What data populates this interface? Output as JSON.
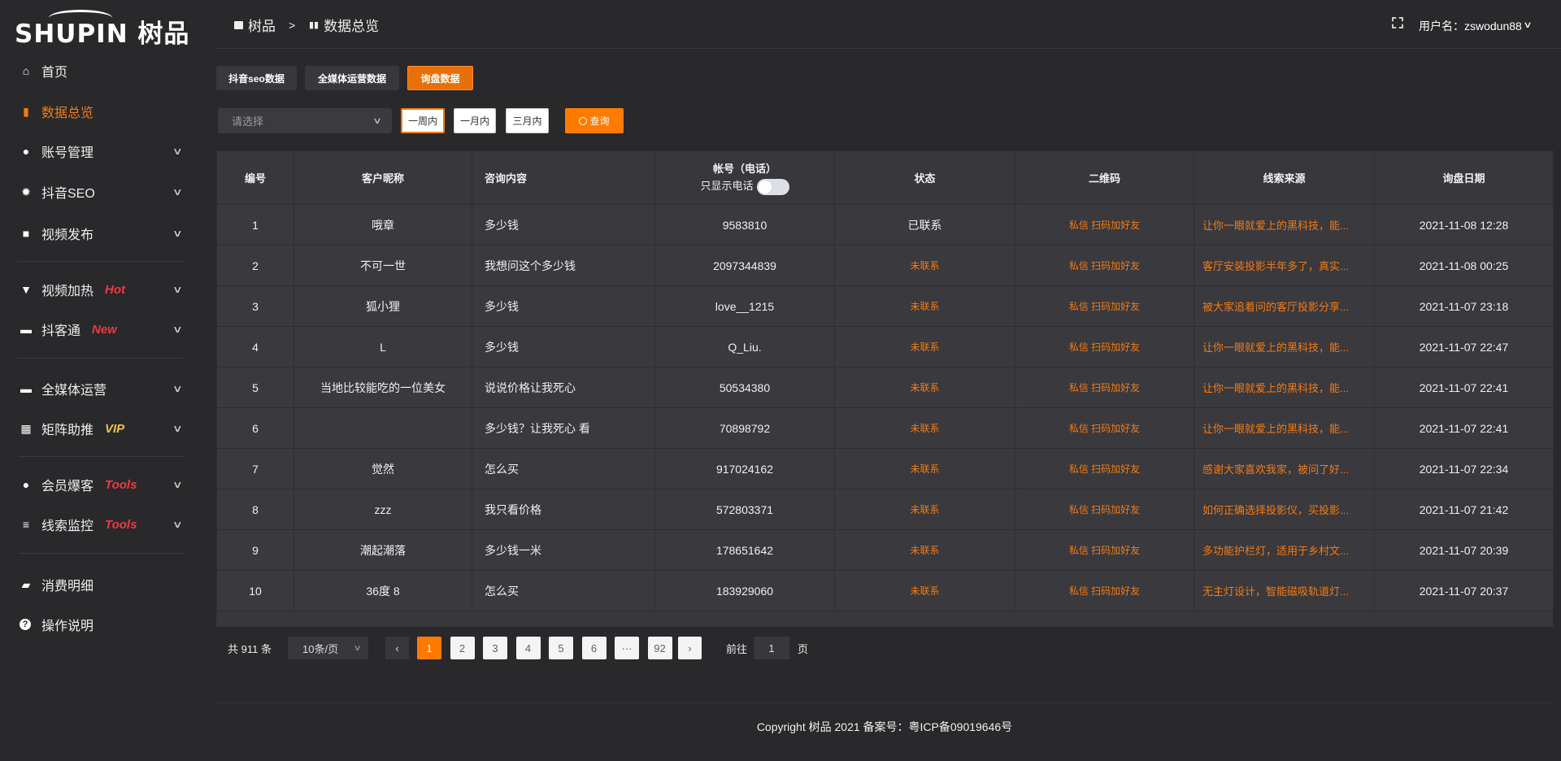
{
  "logo": {
    "text": "SHUPIN 树品"
  },
  "header": {
    "breadcrumb": [
      {
        "label": "树品",
        "icon": "chart-line-icon"
      },
      {
        "label": "数据总览",
        "icon": "bar-chart-icon"
      }
    ],
    "separator": ">",
    "username_label": "用户名：zswodun88"
  },
  "sidebar": {
    "items": [
      {
        "label": "首页",
        "icon": "home-icon",
        "badge": "",
        "chevron": false
      },
      {
        "label": "数据总览",
        "icon": "bar-chart-icon",
        "badge": "",
        "chevron": false,
        "active": true
      },
      {
        "label": "账号管理",
        "icon": "user-icon",
        "badge": "",
        "chevron": true
      },
      {
        "label": "抖音SEO",
        "icon": "gear-icon",
        "badge": "",
        "chevron": true
      },
      {
        "label": "视频发布",
        "icon": "video-icon",
        "badge": "",
        "chevron": true
      },
      {
        "label": "视频加热",
        "icon": "brush-icon",
        "badge": "Hot",
        "chevron": true
      },
      {
        "label": "抖客通",
        "icon": "chat-icon",
        "badge": "New",
        "chevron": true
      },
      {
        "label": "全媒体运营",
        "icon": "monitor-icon",
        "badge": "",
        "chevron": true
      },
      {
        "label": "矩阵助推",
        "icon": "grid-icon",
        "badge": "VIP",
        "chevron": true
      },
      {
        "label": "会员爆客",
        "icon": "member-icon",
        "badge": "Tools",
        "chevron": true
      },
      {
        "label": "线索监控",
        "icon": "sliders-icon",
        "badge": "Tools",
        "chevron": true
      },
      {
        "label": "消费明细",
        "icon": "wallet-icon",
        "badge": "",
        "chevron": false
      },
      {
        "label": "操作说明",
        "icon": "help-icon",
        "badge": "",
        "chevron": false
      }
    ],
    "badge_colors": {
      "Hot": "#f0383f",
      "New": "#f0383f",
      "VIP": "#f5c242",
      "Tools": "#f0383f"
    }
  },
  "tabs": [
    {
      "label": "抖音seo数据"
    },
    {
      "label": "全媒体运营数据"
    },
    {
      "label": "询盘数据",
      "active": true
    }
  ],
  "filters": {
    "select_placeholder": "请选择",
    "ranges": [
      "一周内",
      "一月内",
      "三月内"
    ],
    "active_range": "一周内",
    "query_label": "查询"
  },
  "table": {
    "headers": [
      "编号",
      "客户昵称",
      "咨询内容",
      "帐号（电话）",
      "状态",
      "二维码",
      "线索来源",
      "询盘日期"
    ],
    "phone_toggle_label": "只显示电话",
    "phone_toggle_on": false,
    "rows": [
      {
        "id": "1",
        "nickname": "哦章",
        "content": "多少钱",
        "account": "9583810",
        "status": "已联系",
        "qr": "私信 扫码加好友",
        "source": "让你一眼就爱上的黑科技，能...",
        "date": "2021-11-08 12:28"
      },
      {
        "id": "2",
        "nickname": "不可一世",
        "content": "我想问这个多少钱",
        "account": "2097344839",
        "status": "未联系",
        "qr": "私信 扫码加好友",
        "source": "客厅安装投影半年多了，真实...",
        "date": "2021-11-08 00:25"
      },
      {
        "id": "3",
        "nickname": "狐小狸",
        "content": "多少钱",
        "account": "love__1215",
        "status": "未联系",
        "qr": "私信 扫码加好友",
        "source": "被大家追着问的客厅投影分享...",
        "date": "2021-11-07 23:18"
      },
      {
        "id": "4",
        "nickname": "L",
        "content": "多少钱",
        "account": "Q_Liu.",
        "status": "未联系",
        "qr": "私信 扫码加好友",
        "source": "让你一眼就爱上的黑科技，能...",
        "date": "2021-11-07 22:47"
      },
      {
        "id": "5",
        "nickname": "当地比较能吃的一位美女",
        "content": "说说价格让我死心",
        "account": "50534380",
        "status": "未联系",
        "qr": "私信 扫码加好友",
        "source": "让你一眼就爱上的黑科技，能...",
        "date": "2021-11-07 22:41"
      },
      {
        "id": "6",
        "nickname": "",
        "content": "多少钱？让我死心 看",
        "account": "70898792",
        "status": "未联系",
        "qr": "私信 扫码加好友",
        "source": "让你一眼就爱上的黑科技，能...",
        "date": "2021-11-07 22:41"
      },
      {
        "id": "7",
        "nickname": "觉然",
        "content": "怎么买",
        "account": "917024162",
        "status": "未联系",
        "qr": "私信 扫码加好友",
        "source": "感谢大家喜欢我家，被问了好...",
        "date": "2021-11-07 22:34"
      },
      {
        "id": "8",
        "nickname": "zzz",
        "content": "我只看价格",
        "account": "572803371",
        "status": "未联系",
        "qr": "私信 扫码加好友",
        "source": "如何正确选择投影仪，买投影...",
        "date": "2021-11-07 21:42"
      },
      {
        "id": "9",
        "nickname": "潮起潮落",
        "content": "多少钱一米",
        "account": "178651642",
        "status": "未联系",
        "qr": "私信 扫码加好友",
        "source": "多功能护栏灯，适用于乡村文...",
        "date": "2021-11-07 20:39"
      },
      {
        "id": "10",
        "nickname": "36度 8",
        "content": "怎么买",
        "account": "183929060",
        "status": "未联系",
        "qr": "私信 扫码加好友",
        "source": "无主灯设计，智能磁吸轨道灯...",
        "date": "2021-11-07 20:37"
      }
    ]
  },
  "pagination": {
    "total_label": "共 911 条",
    "page_size": "10条/页",
    "pages": [
      "1",
      "2",
      "3",
      "4",
      "5",
      "6",
      "···",
      "92"
    ],
    "current": "1",
    "goto_label": "前往",
    "goto_value": "1",
    "page_suffix": "页"
  },
  "footer": {
    "copyright": "Copyright 树品 2021 备案号：粤ICP备09019646号"
  },
  "colors": {
    "accent": "#ff7a00",
    "background": "#29292c",
    "table": "#3a393e"
  }
}
